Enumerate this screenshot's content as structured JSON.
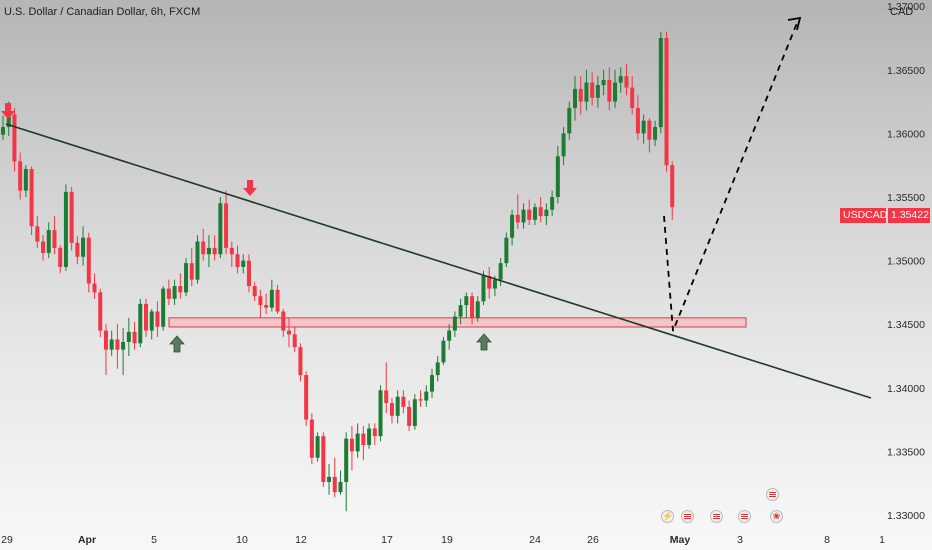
{
  "header": {
    "title": "U.S. Dollar / Canadian Dollar, 6h, FXCM",
    "currency": "CAD"
  },
  "price_label": {
    "symbol": "USDCAD",
    "price": "1.35422",
    "color": "#f23645"
  },
  "colors": {
    "up": "#1e7b34",
    "down": "#f23645",
    "trendline": "#1d3a24",
    "zone_fill": "#f7b9be",
    "zone_border": "#e0394a",
    "forecast": "#000000"
  },
  "events": [
    {
      "icon": "lightning-icon"
    },
    {
      "icon": "us-flag-icon"
    },
    {
      "icon": "us-flag-icon"
    },
    {
      "icon": "us-flag-icon"
    },
    {
      "icon": "us-flag-icon"
    },
    {
      "icon": "canada-flag-icon"
    }
  ],
  "chart_data": {
    "type": "candlestick",
    "symbol": "USDCAD",
    "timeframe": "6h",
    "y_ticks": [
      "1.33000",
      "1.33500",
      "1.34000",
      "1.34500",
      "1.35000",
      "1.35500",
      "1.36000",
      "1.36500",
      "1.37000"
    ],
    "x_ticks": [
      {
        "label": "29",
        "bold": false
      },
      {
        "label": "Apr",
        "bold": true
      },
      {
        "label": "5",
        "bold": false
      },
      {
        "label": "10",
        "bold": false
      },
      {
        "label": "12",
        "bold": false
      },
      {
        "label": "17",
        "bold": false
      },
      {
        "label": "19",
        "bold": false
      },
      {
        "label": "24",
        "bold": false
      },
      {
        "label": "26",
        "bold": false
      },
      {
        "label": "May",
        "bold": true
      },
      {
        "label": "3",
        "bold": false
      },
      {
        "label": "8",
        "bold": false
      },
      {
        "label": "1",
        "bold": false
      }
    ],
    "ylim": [
      1.3297,
      1.3745
    ],
    "candles": [
      [
        1.3599,
        1.3614,
        1.3595,
        1.3605
      ],
      [
        1.3605,
        1.3625,
        1.3598,
        1.3615
      ],
      [
        1.3615,
        1.362,
        1.357,
        1.3578
      ],
      [
        1.3578,
        1.3585,
        1.3548,
        1.3555
      ],
      [
        1.3555,
        1.3575,
        1.355,
        1.3572
      ],
      [
        1.3572,
        1.3574,
        1.352,
        1.3527
      ],
      [
        1.3527,
        1.3535,
        1.351,
        1.3515
      ],
      [
        1.3515,
        1.352,
        1.35,
        1.3506
      ],
      [
        1.3506,
        1.353,
        1.3502,
        1.3524
      ],
      [
        1.3524,
        1.3535,
        1.3505,
        1.351
      ],
      [
        1.351,
        1.3512,
        1.349,
        1.3495
      ],
      [
        1.3495,
        1.356,
        1.3492,
        1.3554
      ],
      [
        1.3554,
        1.3558,
        1.3508,
        1.3514
      ],
      [
        1.3514,
        1.3519,
        1.3497,
        1.3503
      ],
      [
        1.3503,
        1.3527,
        1.3496,
        1.3518
      ],
      [
        1.3518,
        1.3522,
        1.3475,
        1.3482
      ],
      [
        1.3482,
        1.349,
        1.347,
        1.3475
      ],
      [
        1.3475,
        1.3478,
        1.344,
        1.3445
      ],
      [
        1.3445,
        1.345,
        1.341,
        1.343
      ],
      [
        1.343,
        1.3445,
        1.3425,
        1.3438
      ],
      [
        1.3438,
        1.345,
        1.3415,
        1.343
      ],
      [
        1.343,
        1.3447,
        1.341,
        1.3436
      ],
      [
        1.3436,
        1.3455,
        1.3425,
        1.3444
      ],
      [
        1.3444,
        1.3452,
        1.343,
        1.3435
      ],
      [
        1.3435,
        1.347,
        1.3432,
        1.3466
      ],
      [
        1.3466,
        1.347,
        1.344,
        1.3445
      ],
      [
        1.3445,
        1.3462,
        1.3438,
        1.346
      ],
      [
        1.346,
        1.3468,
        1.344,
        1.3448
      ],
      [
        1.3448,
        1.348,
        1.3445,
        1.3478
      ],
      [
        1.3478,
        1.3485,
        1.3465,
        1.347
      ],
      [
        1.347,
        1.3485,
        1.3465,
        1.348
      ],
      [
        1.348,
        1.349,
        1.347,
        1.3475
      ],
      [
        1.3475,
        1.3502,
        1.3472,
        1.3498
      ],
      [
        1.3498,
        1.351,
        1.348,
        1.3485
      ],
      [
        1.3485,
        1.352,
        1.3482,
        1.3515
      ],
      [
        1.3515,
        1.3525,
        1.35,
        1.3505
      ],
      [
        1.3505,
        1.352,
        1.3495,
        1.351
      ],
      [
        1.351,
        1.352,
        1.35,
        1.3505
      ],
      [
        1.3505,
        1.355,
        1.3502,
        1.3545
      ],
      [
        1.3545,
        1.3555,
        1.3505,
        1.351
      ],
      [
        1.351,
        1.3515,
        1.3495,
        1.3505
      ],
      [
        1.3505,
        1.3512,
        1.349,
        1.3495
      ],
      [
        1.3495,
        1.3505,
        1.349,
        1.35
      ],
      [
        1.35,
        1.3505,
        1.3475,
        1.348
      ],
      [
        1.348,
        1.3483,
        1.3468,
        1.3472
      ],
      [
        1.3472,
        1.3477,
        1.3455,
        1.3465
      ],
      [
        1.3465,
        1.3474,
        1.3458,
        1.3463
      ],
      [
        1.3463,
        1.3485,
        1.346,
        1.3477
      ],
      [
        1.3477,
        1.3481,
        1.3458,
        1.346
      ],
      [
        1.346,
        1.3462,
        1.344,
        1.3445
      ],
      [
        1.3445,
        1.3455,
        1.3432,
        1.3442
      ],
      [
        1.3442,
        1.3448,
        1.3428,
        1.3432
      ],
      [
        1.3432,
        1.3435,
        1.3405,
        1.341
      ],
      [
        1.341,
        1.3413,
        1.337,
        1.3375
      ],
      [
        1.3375,
        1.338,
        1.334,
        1.3345
      ],
      [
        1.3345,
        1.3365,
        1.3342,
        1.3362
      ],
      [
        1.3362,
        1.3365,
        1.3322,
        1.3326
      ],
      [
        1.3326,
        1.334,
        1.3316,
        1.333
      ],
      [
        1.333,
        1.3345,
        1.3314,
        1.3318
      ],
      [
        1.3318,
        1.3335,
        1.3316,
        1.3326
      ],
      [
        1.3326,
        1.3365,
        1.3303,
        1.336
      ],
      [
        1.336,
        1.337,
        1.3335,
        1.335
      ],
      [
        1.335,
        1.3372,
        1.3345,
        1.3364
      ],
      [
        1.3364,
        1.337,
        1.3343,
        1.3355
      ],
      [
        1.3355,
        1.3372,
        1.3352,
        1.3368
      ],
      [
        1.3368,
        1.3372,
        1.3355,
        1.3362
      ],
      [
        1.3362,
        1.3402,
        1.3358,
        1.3398
      ],
      [
        1.3398,
        1.342,
        1.338,
        1.3388
      ],
      [
        1.3388,
        1.3392,
        1.3372,
        1.3378
      ],
      [
        1.3378,
        1.3398,
        1.3372,
        1.3393
      ],
      [
        1.3393,
        1.3398,
        1.338,
        1.3385
      ],
      [
        1.3385,
        1.339,
        1.3366,
        1.337
      ],
      [
        1.337,
        1.3395,
        1.3367,
        1.3391
      ],
      [
        1.3391,
        1.3398,
        1.3385,
        1.339
      ],
      [
        1.339,
        1.3402,
        1.3385,
        1.3397
      ],
      [
        1.3397,
        1.3415,
        1.3392,
        1.341
      ],
      [
        1.341,
        1.3425,
        1.3405,
        1.342
      ],
      [
        1.342,
        1.344,
        1.3418,
        1.3437
      ],
      [
        1.3437,
        1.345,
        1.343,
        1.3445
      ],
      [
        1.3445,
        1.346,
        1.344,
        1.3456
      ],
      [
        1.3456,
        1.347,
        1.345,
        1.3465
      ],
      [
        1.3465,
        1.3475,
        1.3455,
        1.3472
      ],
      [
        1.3472,
        1.3475,
        1.345,
        1.3455
      ],
      [
        1.3455,
        1.3472,
        1.3452,
        1.3468
      ],
      [
        1.3468,
        1.3492,
        1.3465,
        1.3488
      ],
      [
        1.3488,
        1.3495,
        1.347,
        1.3478
      ],
      [
        1.3478,
        1.3488,
        1.3472,
        1.3485
      ],
      [
        1.3485,
        1.3502,
        1.348,
        1.3498
      ],
      [
        1.3498,
        1.3522,
        1.3495,
        1.3518
      ],
      [
        1.3518,
        1.354,
        1.3512,
        1.3536
      ],
      [
        1.3536,
        1.3552,
        1.3525,
        1.353
      ],
      [
        1.353,
        1.3545,
        1.3525,
        1.354
      ],
      [
        1.354,
        1.3548,
        1.3528,
        1.3532
      ],
      [
        1.3532,
        1.3545,
        1.3528,
        1.3542
      ],
      [
        1.3542,
        1.355,
        1.353,
        1.3535
      ],
      [
        1.3535,
        1.3545,
        1.3528,
        1.354
      ],
      [
        1.354,
        1.3555,
        1.3535,
        1.355
      ],
      [
        1.355,
        1.359,
        1.3545,
        1.3582
      ],
      [
        1.3582,
        1.3605,
        1.3575,
        1.36
      ],
      [
        1.36,
        1.3625,
        1.3595,
        1.362
      ],
      [
        1.362,
        1.3645,
        1.361,
        1.3635
      ],
      [
        1.3635,
        1.3645,
        1.3615,
        1.3625
      ],
      [
        1.3625,
        1.365,
        1.3618,
        1.364
      ],
      [
        1.364,
        1.3648,
        1.3622,
        1.3628
      ],
      [
        1.3628,
        1.3645,
        1.362,
        1.3638
      ],
      [
        1.3638,
        1.365,
        1.363,
        1.3642
      ],
      [
        1.3642,
        1.3652,
        1.3618,
        1.3625
      ],
      [
        1.3625,
        1.365,
        1.362,
        1.364
      ],
      [
        1.364,
        1.3652,
        1.3632,
        1.3645
      ],
      [
        1.3645,
        1.3655,
        1.363,
        1.3636
      ],
      [
        1.3636,
        1.3645,
        1.3615,
        1.362
      ],
      [
        1.362,
        1.363,
        1.3595,
        1.36
      ],
      [
        1.36,
        1.3615,
        1.3592,
        1.361
      ],
      [
        1.361,
        1.3612,
        1.3585,
        1.3595
      ],
      [
        1.3595,
        1.361,
        1.359,
        1.3605
      ],
      [
        1.3605,
        1.368,
        1.36,
        1.3675
      ],
      [
        1.3675,
        1.368,
        1.357,
        1.3575
      ],
      [
        1.3575,
        1.3578,
        1.3532,
        1.3542
      ]
    ],
    "trendline": {
      "from": [
        0,
        1.36225
      ],
      "to": [
        "2024-05-10",
        1.3395
      ]
    },
    "support_zone": {
      "low": 1.34478,
      "high": 1.3455
    },
    "forecast_path": [
      [
        1.3542
      ],
      [
        1.3449
      ],
      [
        1.3715
      ]
    ],
    "markers": {
      "down_arrows": [
        "candle_1",
        "candle_38"
      ],
      "up_arrows": [
        "candle_28",
        "candle_80"
      ]
    },
    "grid": false,
    "current_price": 1.35422
  }
}
